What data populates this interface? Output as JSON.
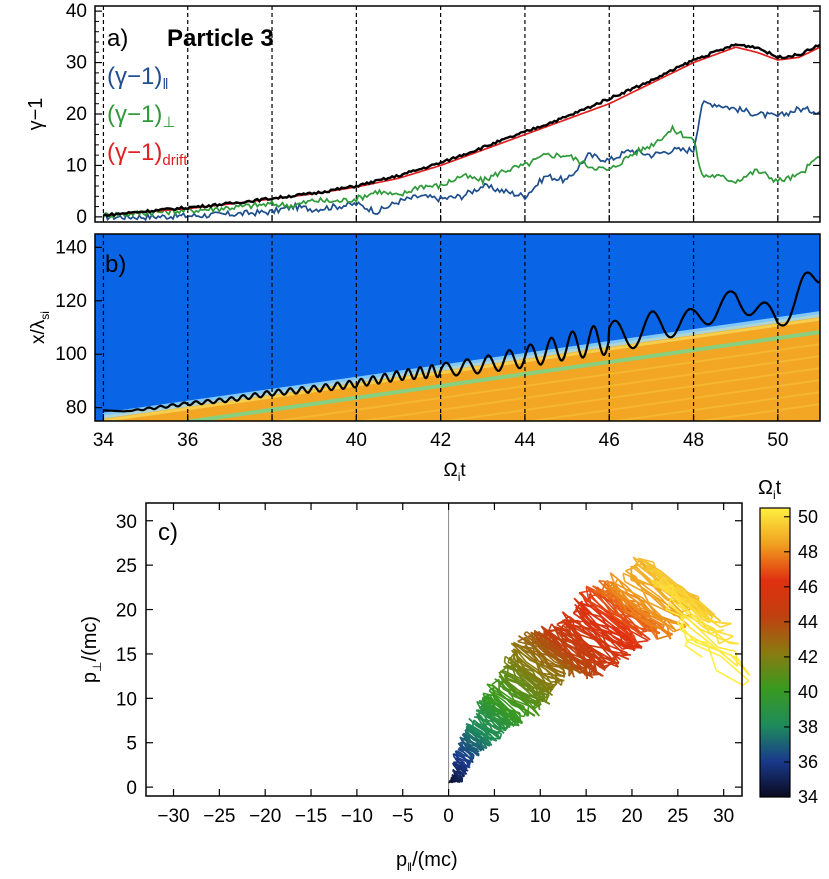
{
  "colors": {
    "black": "#000000",
    "par": "#1f4e8c",
    "perp": "#2e9a3a",
    "drift": "#e02020",
    "plasma": "#0a64e6",
    "shock": "#f2a623",
    "band": "#88d080",
    "cmap": [
      "#0a0a1e",
      "#1a3a8c",
      "#1e8c5a",
      "#3a9a20",
      "#8a7a10",
      "#c04010",
      "#e03010",
      "#f0a020",
      "#fff040"
    ]
  },
  "chart_data": [
    {
      "panel": "a",
      "type": "line",
      "panel_label": "a)",
      "title": "Particle 3",
      "ylabel": "γ−1",
      "xlim": [
        33.8,
        51
      ],
      "ylim": [
        -1,
        41
      ],
      "yticks": [
        "0",
        "10",
        "20",
        "30",
        "40"
      ],
      "vlines": [
        34,
        36,
        38,
        40,
        42,
        44,
        46,
        48,
        50
      ],
      "series": [
        {
          "name": "(γ−1)ǁ",
          "legend": {
            "base": "(γ−1)",
            "sub": "ǁ"
          },
          "color_key": "par",
          "x": [
            34,
            35,
            36,
            37,
            38,
            38.5,
            39,
            39.5,
            40,
            40.5,
            41,
            41.5,
            42,
            42.5,
            43,
            43.5,
            44,
            44.5,
            45,
            45.5,
            46,
            46.5,
            47,
            47.5,
            48,
            48.2,
            48.5,
            49,
            49.5,
            50,
            50.5,
            51
          ],
          "y": [
            0,
            0,
            0.2,
            0.5,
            1,
            2,
            1.5,
            2,
            2.5,
            1,
            3,
            4,
            3.5,
            4,
            6,
            5,
            4,
            8,
            7,
            12,
            11,
            13,
            12,
            13,
            13,
            22,
            22,
            21,
            20,
            19.5,
            21,
            20.5
          ]
        },
        {
          "name": "(γ−1)⊥",
          "legend": {
            "base": "(γ−1)",
            "sub": "⊥"
          },
          "color_key": "perp",
          "x": [
            34,
            35,
            36,
            37,
            38,
            38.5,
            39,
            39.5,
            40,
            40.5,
            41,
            41.5,
            42,
            42.5,
            43,
            43.5,
            44,
            44.5,
            45,
            45.5,
            46,
            46.5,
            47,
            47.5,
            48,
            48.2,
            48.5,
            49,
            49.5,
            50,
            50.5,
            51
          ],
          "y": [
            0.3,
            0.8,
            1.2,
            1.8,
            2.5,
            2.2,
            3.2,
            3,
            3.5,
            5,
            4,
            6,
            6,
            8,
            7,
            9,
            10,
            12,
            12,
            10,
            9,
            12,
            14,
            17,
            15,
            8,
            8,
            7,
            9,
            7,
            8,
            12
          ]
        },
        {
          "name": "(γ−1)drift",
          "legend": {
            "base": "(γ−1)",
            "sub": "drift"
          },
          "color_key": "drift",
          "x": [
            34,
            35,
            36,
            37,
            38,
            39,
            40,
            41,
            42,
            43,
            44,
            45,
            46,
            47,
            48,
            48.5,
            49,
            49.5,
            50,
            50.5,
            51
          ],
          "y": [
            0.3,
            1,
            1.6,
            2.5,
            3.5,
            4.5,
            5.8,
            7.5,
            10,
            13,
            16,
            19,
            22,
            26,
            30,
            31.5,
            33,
            32,
            30.5,
            31,
            33
          ]
        },
        {
          "name": "γ−1",
          "color_key": "black",
          "unlabeled": true,
          "x": [
            34,
            35,
            36,
            37,
            38,
            39,
            40,
            41,
            42,
            43,
            44,
            45,
            46,
            47,
            48,
            48.5,
            49,
            49.5,
            50,
            50.5,
            51
          ],
          "y": [
            0.3,
            1.1,
            1.8,
            2.6,
            3.6,
            4.6,
            6,
            8,
            10.5,
            13.5,
            16.5,
            19.5,
            23,
            26.5,
            30.5,
            32,
            33.5,
            33,
            31,
            31.5,
            33.5
          ]
        }
      ]
    },
    {
      "panel": "b",
      "type": "heatmap",
      "panel_label": "b)",
      "ylabel": "x/λ",
      "ylabel_sub": "si",
      "xlabel": "Ω",
      "xlabel_sub": "i",
      "xlabel_after": "t",
      "xlim": [
        33.8,
        51
      ],
      "ylim": [
        75,
        145
      ],
      "xticks": [
        "34",
        "36",
        "38",
        "40",
        "42",
        "44",
        "46",
        "48",
        "50"
      ],
      "yticks": [
        "80",
        "100",
        "120",
        "140"
      ],
      "vlines": [
        34,
        36,
        38,
        40,
        42,
        44,
        46,
        48,
        50
      ],
      "shock_front": {
        "x": [
          34,
          51
        ],
        "y": [
          77,
          115
        ]
      },
      "trajectory": {
        "x": [
          34,
          34.5,
          35,
          36,
          37,
          38,
          39,
          40,
          41,
          42,
          43,
          44,
          45,
          46,
          47,
          48,
          48.5,
          49,
          49.5,
          50,
          50.5,
          51
        ],
        "y": [
          79,
          78.6,
          79.5,
          81.5,
          83,
          85.5,
          87,
          89,
          92,
          94,
          96,
          99,
          103,
          106,
          110,
          113,
          116,
          121,
          117,
          113,
          121,
          132
        ],
        "osc_amp": [
          0,
          0,
          0.4,
          0.6,
          0.8,
          1,
          1.2,
          1.4,
          1.8,
          2.5,
          3,
          4,
          5,
          6,
          6,
          4,
          4,
          4,
          4,
          4,
          6,
          6
        ]
      }
    },
    {
      "panel": "c",
      "type": "scatter",
      "panel_label": "c)",
      "xlabel": "p",
      "xlabel_sub": "ǁ",
      "xlabel_after": "/(mc)",
      "ylabel": "p",
      "ylabel_sub": "⊥",
      "ylabel_after": "/(mc)",
      "xlim": [
        -33,
        32
      ],
      "ylim": [
        -1,
        32
      ],
      "xticks": [
        "−30",
        "−25",
        "−20",
        "−15",
        "−10",
        "−5",
        "0",
        "5",
        "10",
        "15",
        "20",
        "25",
        "30"
      ],
      "yticks": [
        "0",
        "5",
        "10",
        "15",
        "20",
        "25",
        "30"
      ],
      "colorbar": {
        "label": "Ω",
        "label_sub": "i",
        "label_after": "t",
        "range": [
          34,
          50.5
        ],
        "ticks": [
          "34",
          "36",
          "38",
          "40",
          "42",
          "44",
          "46",
          "48",
          "50"
        ]
      },
      "trajectory": {
        "t": [
          34,
          35,
          36,
          37,
          38,
          39,
          40,
          41,
          42,
          43,
          44,
          45,
          46,
          47,
          48,
          49,
          50,
          50.5
        ],
        "x": [
          0,
          1,
          1.5,
          2.5,
          3.5,
          5,
          6,
          8,
          9,
          11,
          13,
          15,
          17,
          19,
          21,
          24,
          27,
          29
        ],
        "y": [
          0.5,
          1,
          3,
          5,
          6,
          8,
          9,
          11,
          13,
          15,
          15,
          16,
          18,
          20,
          20,
          23,
          20,
          14
        ],
        "spread": [
          0,
          0.5,
          0.8,
          1,
          1.3,
          1.6,
          2,
          2.2,
          2.4,
          2.6,
          2.8,
          3,
          3.2,
          3.3,
          3.4,
          3.5,
          3.5,
          3.5
        ]
      }
    }
  ]
}
